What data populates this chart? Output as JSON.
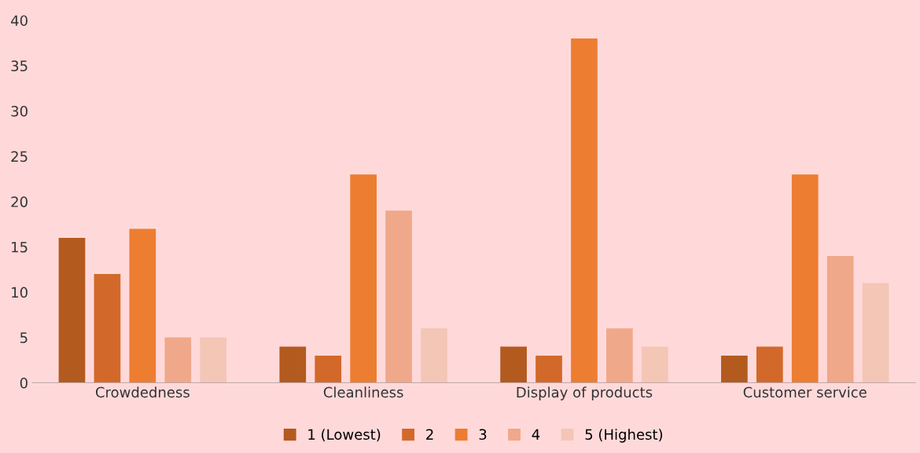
{
  "chart_data": {
    "type": "bar",
    "categories": [
      "Crowdedness",
      "Cleanliness",
      "Display of products",
      "Customer service"
    ],
    "series": [
      {
        "name": "1 (Lowest)",
        "color": "#b35a1f",
        "values": [
          16,
          4,
          4,
          3
        ]
      },
      {
        "name": "2",
        "color": "#d2692a",
        "values": [
          12,
          3,
          3,
          4
        ]
      },
      {
        "name": "3",
        "color": "#ed7d31",
        "values": [
          17,
          23,
          38,
          23
        ]
      },
      {
        "name": "4",
        "color": "#f0a88a",
        "values": [
          5,
          19,
          6,
          14
        ]
      },
      {
        "name": "5 (Highest)",
        "color": "#f3c6b6",
        "values": [
          5,
          6,
          4,
          11
        ]
      }
    ],
    "ylim": [
      0,
      40
    ],
    "yticks": [
      0,
      5,
      10,
      15,
      20,
      25,
      30,
      35,
      40
    ],
    "grid": false,
    "legend": "bottom"
  }
}
